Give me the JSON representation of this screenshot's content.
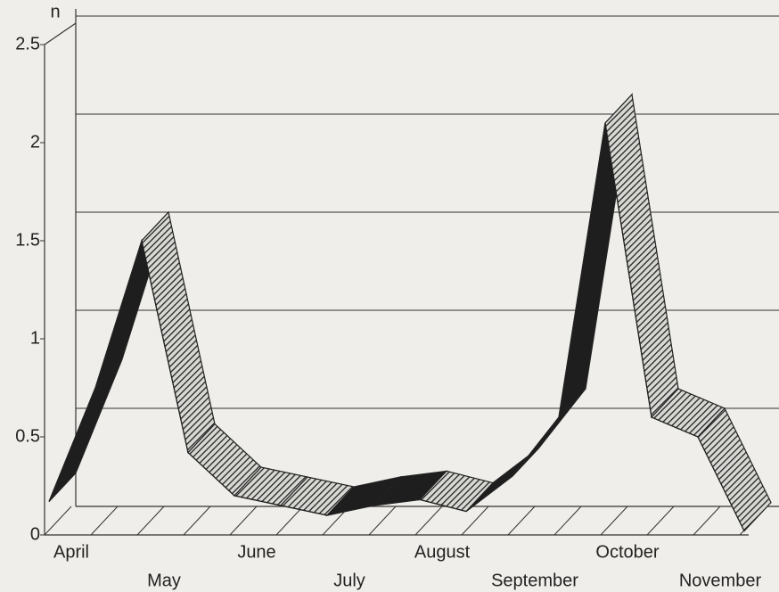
{
  "chart_data": {
    "type": "line",
    "y_label": "n",
    "categories": [
      "April",
      null,
      "May",
      null,
      "June",
      null,
      "July",
      null,
      "August",
      null,
      "September",
      null,
      "October",
      null,
      "November",
      null
    ],
    "series": [
      {
        "values": [
          0.17,
          0.75,
          1.5,
          0.42,
          0.2,
          0.15,
          0.1,
          0.15,
          0.18,
          0.12,
          0.3,
          0.6,
          2.1,
          0.6,
          0.5,
          0.02
        ]
      }
    ],
    "ylim": [
      0,
      2.5
    ],
    "yticks": [
      0,
      0.5,
      1,
      1.5,
      2,
      2.5
    ],
    "grid": true
  }
}
